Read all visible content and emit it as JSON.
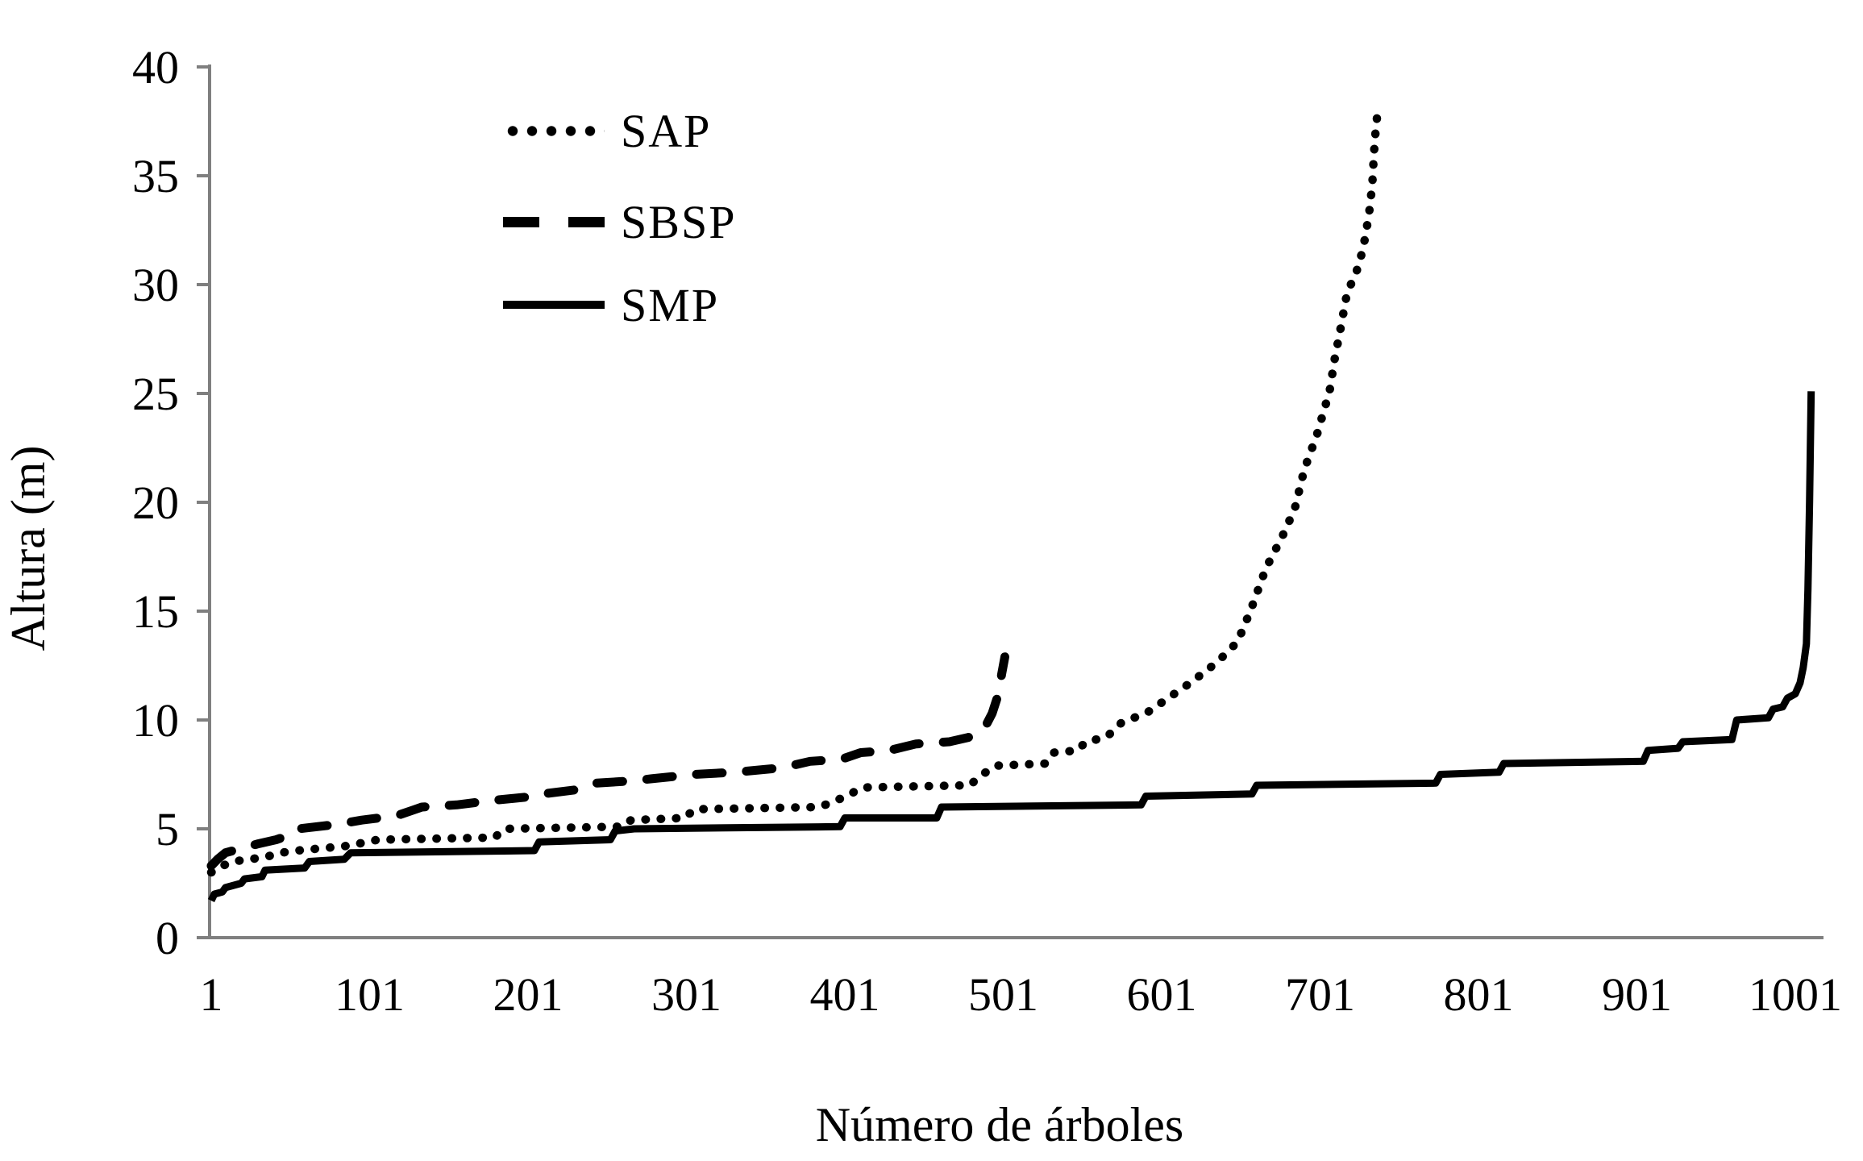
{
  "figure": {
    "background_color": "#ffffff",
    "axis_color": "#7f7f7f",
    "line_color": "#000000",
    "text_color": "#000000"
  },
  "legend": {
    "items": [
      {
        "label": "SAP",
        "style": "dotted"
      },
      {
        "label": "SBSP",
        "style": "dashed"
      },
      {
        "label": "SMP",
        "style": "solid"
      }
    ]
  },
  "chart_data": {
    "type": "line",
    "title": "",
    "xlabel": "Número de árboles",
    "ylabel": "Altura (m)",
    "xlim": [
      1,
      1020
    ],
    "ylim": [
      0,
      40
    ],
    "grid": false,
    "legend_position": "inside-top-left",
    "x_ticks": [
      1,
      101,
      201,
      301,
      401,
      501,
      601,
      701,
      801,
      901,
      1001
    ],
    "y_ticks": [
      0,
      5,
      10,
      15,
      20,
      25,
      30,
      35,
      40
    ],
    "series": [
      {
        "name": "SAP",
        "style": "dotted",
        "color": "#000000",
        "points": [
          [
            1,
            3.0
          ],
          [
            4,
            3.1
          ],
          [
            8,
            3.3
          ],
          [
            15,
            3.5
          ],
          [
            25,
            3.6
          ],
          [
            35,
            3.7
          ],
          [
            45,
            3.9
          ],
          [
            55,
            4.0
          ],
          [
            70,
            4.1
          ],
          [
            85,
            4.2
          ],
          [
            100,
            4.4
          ],
          [
            106,
            4.5
          ],
          [
            180,
            4.6
          ],
          [
            186,
            5.0
          ],
          [
            260,
            5.1
          ],
          [
            266,
            5.4
          ],
          [
            300,
            5.5
          ],
          [
            306,
            5.9
          ],
          [
            385,
            6.0
          ],
          [
            392,
            6.2
          ],
          [
            402,
            6.5
          ],
          [
            412,
            6.9
          ],
          [
            480,
            7.0
          ],
          [
            486,
            7.4
          ],
          [
            496,
            7.9
          ],
          [
            528,
            8.0
          ],
          [
            533,
            8.5
          ],
          [
            548,
            8.6
          ],
          [
            553,
            9.0
          ],
          [
            566,
            9.2
          ],
          [
            576,
            9.9
          ],
          [
            591,
            10.3
          ],
          [
            605,
            11.0
          ],
          [
            617,
            11.6
          ],
          [
            630,
            12.3
          ],
          [
            641,
            13.0
          ],
          [
            649,
            13.6
          ],
          [
            657,
            15.0
          ],
          [
            667,
            17.0
          ],
          [
            677,
            18.4
          ],
          [
            685,
            19.7
          ],
          [
            691,
            21.5
          ],
          [
            695,
            22.3
          ],
          [
            699,
            23.1
          ],
          [
            703,
            24.1
          ],
          [
            707,
            25.1
          ],
          [
            710,
            26.5
          ],
          [
            714,
            28.0
          ],
          [
            718,
            29.6
          ],
          [
            724,
            30.6
          ],
          [
            728,
            31.6
          ],
          [
            730,
            32.4
          ],
          [
            732,
            33.3
          ],
          [
            734,
            34.6
          ],
          [
            735,
            36.0
          ],
          [
            736,
            37.0
          ],
          [
            737,
            37.7
          ]
        ]
      },
      {
        "name": "SBSP",
        "style": "dashed",
        "color": "#000000",
        "points": [
          [
            1,
            3.3
          ],
          [
            5,
            3.6
          ],
          [
            10,
            3.9
          ],
          [
            20,
            4.1
          ],
          [
            30,
            4.3
          ],
          [
            42,
            4.5
          ],
          [
            50,
            4.7
          ],
          [
            56,
            5.0
          ],
          [
            80,
            5.2
          ],
          [
            96,
            5.4
          ],
          [
            118,
            5.6
          ],
          [
            134,
            6.0
          ],
          [
            156,
            6.1
          ],
          [
            178,
            6.3
          ],
          [
            206,
            6.5
          ],
          [
            210,
            6.6
          ],
          [
            232,
            6.8
          ],
          [
            244,
            7.1
          ],
          [
            266,
            7.2
          ],
          [
            279,
            7.3
          ],
          [
            306,
            7.5
          ],
          [
            332,
            7.6
          ],
          [
            361,
            7.8
          ],
          [
            379,
            8.1
          ],
          [
            399,
            8.2
          ],
          [
            411,
            8.5
          ],
          [
            429,
            8.6
          ],
          [
            446,
            8.9
          ],
          [
            467,
            9.0
          ],
          [
            479,
            9.2
          ],
          [
            489,
            9.6
          ],
          [
            494,
            10.3
          ],
          [
            498,
            11.2
          ],
          [
            500,
            12.1
          ],
          [
            502,
            12.9
          ]
        ]
      },
      {
        "name": "SMP",
        "style": "solid",
        "color": "#000000",
        "points": [
          [
            1,
            1.7
          ],
          [
            3,
            2.0
          ],
          [
            8,
            2.1
          ],
          [
            10,
            2.3
          ],
          [
            20,
            2.5
          ],
          [
            22,
            2.7
          ],
          [
            33,
            2.8
          ],
          [
            35,
            3.1
          ],
          [
            60,
            3.2
          ],
          [
            63,
            3.5
          ],
          [
            85,
            3.6
          ],
          [
            89,
            3.9
          ],
          [
            205,
            4.0
          ],
          [
            208,
            4.4
          ],
          [
            253,
            4.5
          ],
          [
            256,
            4.9
          ],
          [
            268,
            5.0
          ],
          [
            398,
            5.1
          ],
          [
            401,
            5.5
          ],
          [
            459,
            5.5
          ],
          [
            462,
            6.0
          ],
          [
            588,
            6.1
          ],
          [
            591,
            6.5
          ],
          [
            658,
            6.6
          ],
          [
            661,
            7.0
          ],
          [
            774,
            7.1
          ],
          [
            777,
            7.5
          ],
          [
            814,
            7.6
          ],
          [
            817,
            8.0
          ],
          [
            905,
            8.1
          ],
          [
            908,
            8.6
          ],
          [
            927,
            8.7
          ],
          [
            930,
            9.0
          ],
          [
            961,
            9.1
          ],
          [
            964,
            10.0
          ],
          [
            984,
            10.1
          ],
          [
            987,
            10.5
          ],
          [
            993,
            10.6
          ],
          [
            996,
            11.0
          ],
          [
            1001,
            11.2
          ],
          [
            1004,
            11.7
          ],
          [
            1006,
            12.4
          ],
          [
            1008,
            13.5
          ],
          [
            1009,
            16.0
          ],
          [
            1010,
            20.0
          ],
          [
            1011,
            25.1
          ]
        ]
      }
    ]
  }
}
